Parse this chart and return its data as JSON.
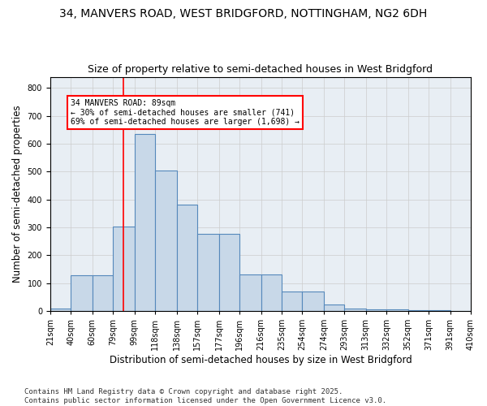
{
  "title1": "34, MANVERS ROAD, WEST BRIDGFORD, NOTTINGHAM, NG2 6DH",
  "title2": "Size of property relative to semi-detached houses in West Bridgford",
  "xlabel": "Distribution of semi-detached houses by size in West Bridgford",
  "ylabel": "Number of semi-detached properties",
  "bin_labels": [
    "21sqm",
    "40sqm",
    "60sqm",
    "79sqm",
    "99sqm",
    "118sqm",
    "138sqm",
    "157sqm",
    "177sqm",
    "196sqm",
    "216sqm",
    "235sqm",
    "254sqm",
    "274sqm",
    "293sqm",
    "313sqm",
    "332sqm",
    "352sqm",
    "371sqm",
    "391sqm",
    "410sqm"
  ],
  "bin_edges": [
    21,
    40,
    60,
    79,
    99,
    118,
    138,
    157,
    177,
    196,
    216,
    235,
    254,
    274,
    293,
    313,
    332,
    352,
    371,
    391,
    410
  ],
  "bar_heights": [
    8,
    128,
    128,
    303,
    635,
    503,
    383,
    278,
    278,
    130,
    130,
    70,
    70,
    22,
    10,
    5,
    5,
    2,
    2,
    0,
    0
  ],
  "bar_color": "#c8d8e8",
  "bar_edge_color": "#5588bb",
  "grid_color": "#cccccc",
  "bg_color": "#e8eef4",
  "red_line_x": 89,
  "annotation_text": "34 MANVERS ROAD: 89sqm\n← 30% of semi-detached houses are smaller (741)\n69% of semi-detached houses are larger (1,698) →",
  "annotation_box_color": "white",
  "annotation_box_edge": "red",
  "ylim": [
    0,
    840
  ],
  "yticks": [
    0,
    100,
    200,
    300,
    400,
    500,
    600,
    700,
    800
  ],
  "footer1": "Contains HM Land Registry data © Crown copyright and database right 2025.",
  "footer2": "Contains public sector information licensed under the Open Government Licence v3.0.",
  "title1_fontsize": 10,
  "title2_fontsize": 9,
  "axis_label_fontsize": 8.5,
  "tick_fontsize": 7,
  "footer_fontsize": 6.5
}
